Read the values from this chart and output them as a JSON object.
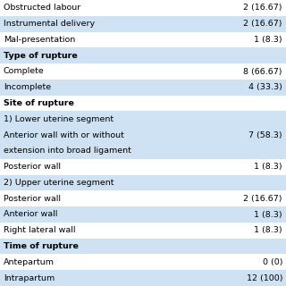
{
  "rows": [
    {
      "label": "Obstructed labour",
      "value": "2 (16.67)",
      "bold": false,
      "bg": "white"
    },
    {
      "label": "Instrumental delivery",
      "value": "2 (16.67)",
      "bold": false,
      "bg": "light"
    },
    {
      "label": "Mal-presentation",
      "value": "1 (8.3)",
      "bold": false,
      "bg": "white"
    },
    {
      "label": "Type of rupture",
      "value": "",
      "bold": true,
      "bg": "light"
    },
    {
      "label": "Complete",
      "value": "8 (66.67)",
      "bold": false,
      "bg": "white"
    },
    {
      "label": "Incomplete",
      "value": "4 (33.3)",
      "bold": false,
      "bg": "light"
    },
    {
      "label": "Site of rupture",
      "value": "",
      "bold": true,
      "bg": "white"
    },
    {
      "label": "1) Lower uterine segment",
      "value": "",
      "bold": false,
      "bg": "light"
    },
    {
      "label": "Anterior wall with or without",
      "value": "7 (58.3)",
      "bold": false,
      "bg": "light"
    },
    {
      "label": "extension into broad ligament",
      "value": "",
      "bold": false,
      "bg": "light"
    },
    {
      "label": "Posterior wall",
      "value": "1 (8.3)",
      "bold": false,
      "bg": "white"
    },
    {
      "label": "2) Upper uterine segment",
      "value": "",
      "bold": false,
      "bg": "light"
    },
    {
      "label": "Posterior wall",
      "value": "2 (16.67)",
      "bold": false,
      "bg": "white"
    },
    {
      "label": "Anterior wall",
      "value": "1 (8.3)",
      "bold": false,
      "bg": "light"
    },
    {
      "label": "Right lateral wall",
      "value": "1 (8.3)",
      "bold": false,
      "bg": "white"
    },
    {
      "label": "Time of rupture",
      "value": "",
      "bold": true,
      "bg": "light"
    },
    {
      "label": "Antepartum",
      "value": "0 (0)",
      "bold": false,
      "bg": "white"
    },
    {
      "label": "Intrapartum",
      "value": "12 (100)",
      "bold": false,
      "bg": "light"
    }
  ],
  "light_bg": "#cfe2f3",
  "white_bg": "#ffffff",
  "text_color": "#000000",
  "font_size": 6.8,
  "bold_font_size": 6.8,
  "fig_width": 3.2,
  "fig_height": 3.2,
  "dpi": 100
}
